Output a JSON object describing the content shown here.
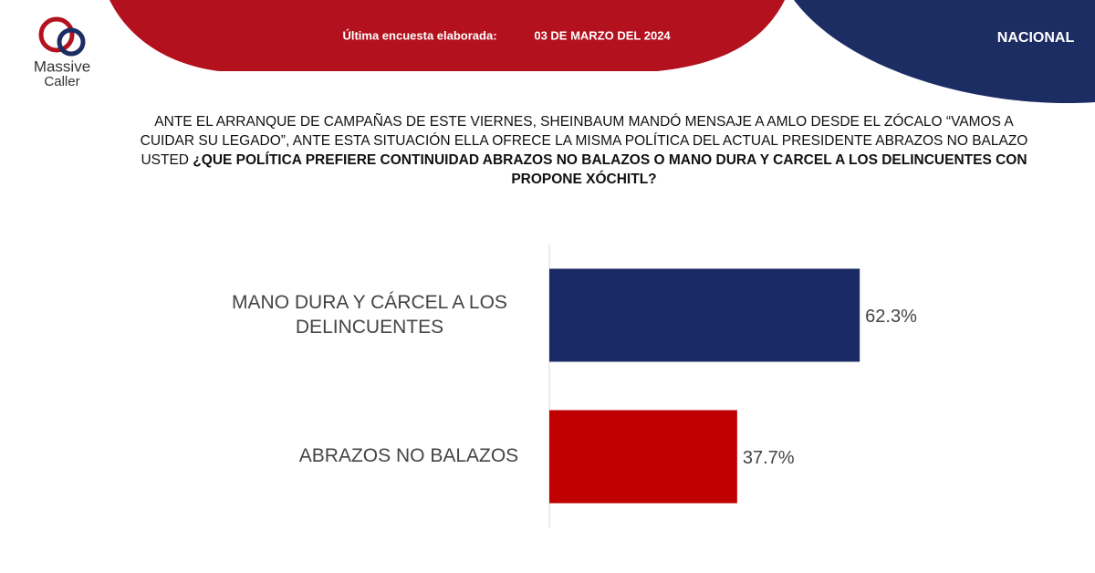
{
  "header": {
    "logo": [
      "Massive",
      "Caller"
    ],
    "survey_label": "Última encuesta elaborada:",
    "survey_date": "03 DE MARZO DEL 2024",
    "scope": "NACIONAL"
  },
  "question": [
    [
      {
        "text": "ANTE EL ARRANQUE DE CAMPAÑAS DE ESTE VIERNES, SHEINBAUM MANDÓ MENSAJE A AMLO DESDE EL ZÓCALO  “VAMOS A",
        "bold": false
      }
    ],
    [
      {
        "text": "CUIDAR SU LEGADO”, ANTE ESTA SITUACIÓN ELLA OFRECE LA MISMA POLÍTICA DEL ACTUAL PRESIDENTE ABRAZOS NO BALAZO",
        "bold": false
      }
    ],
    [
      {
        "text": "USTED ",
        "bold": false
      },
      {
        "text": "¿QUE POLÍTICA PREFIERE CONTINUIDAD ABRAZOS NO BALAZOS O MANO DURA Y CARCEL A LOS DELINCUENTES CON",
        "bold": true
      }
    ],
    [
      {
        "text": "PROPONE XÓCHITL?",
        "bold": true
      }
    ]
  ],
  "chart_data": {
    "type": "barh",
    "categories": [
      "MANO DURA Y CÁRCEL A LOS DELINCUENTES",
      "ABRAZOS NO BALAZOS"
    ],
    "values": [
      62.3,
      37.7
    ],
    "value_labels": [
      "62.3%",
      "37.7%"
    ],
    "colors": [
      "#1a2a66",
      "#c00000"
    ],
    "xlim": [
      0,
      100
    ]
  }
}
